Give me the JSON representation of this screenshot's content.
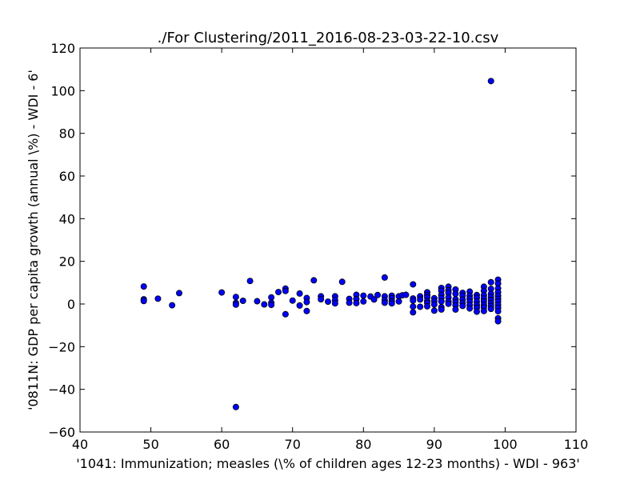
{
  "chart_data": {
    "type": "scatter",
    "title": "./For Clustering/2011_2016-08-23-03-22-10.csv",
    "xlabel": "'1041: Immunization; measles  (\\% of children ages 12-23 months) - WDI - 963'",
    "ylabel": "'0811N: GDP per capita growth  (annual \\%) - WDI - 6'",
    "xlim": [
      40,
      110
    ],
    "ylim": [
      -60,
      120
    ],
    "xticks": [
      40,
      50,
      60,
      70,
      80,
      90,
      100,
      110
    ],
    "yticks": [
      -60,
      -40,
      -20,
      0,
      20,
      40,
      60,
      80,
      100,
      120
    ],
    "grid": false,
    "marker_color": "#0000ff",
    "marker_edge": "#000000",
    "points": [
      [
        49,
        8.2
      ],
      [
        49,
        2.2
      ],
      [
        49,
        1.4
      ],
      [
        51,
        2.5
      ],
      [
        53,
        -0.6
      ],
      [
        54,
        5.1
      ],
      [
        60,
        5.4
      ],
      [
        62,
        3.3
      ],
      [
        62,
        0.5
      ],
      [
        62,
        -0.3
      ],
      [
        62,
        -48.3
      ],
      [
        63,
        1.5
      ],
      [
        64,
        10.8
      ],
      [
        65,
        1.3
      ],
      [
        66,
        -0.2
      ],
      [
        67,
        3.1
      ],
      [
        67,
        0.6
      ],
      [
        67,
        -0.4
      ],
      [
        68,
        5.6
      ],
      [
        69,
        7.2
      ],
      [
        69,
        6.1
      ],
      [
        69,
        -4.8
      ],
      [
        70,
        1.6
      ],
      [
        71,
        4.9
      ],
      [
        71,
        -0.7
      ],
      [
        72,
        2.8
      ],
      [
        72,
        0.9
      ],
      [
        72,
        -3.3
      ],
      [
        73,
        11.1
      ],
      [
        74,
        3.6
      ],
      [
        74,
        2.2
      ],
      [
        75,
        1.1
      ],
      [
        76,
        3.6
      ],
      [
        76,
        1.8
      ],
      [
        76,
        0.3
      ],
      [
        77,
        10.4
      ],
      [
        78,
        2.4
      ],
      [
        78,
        0.6
      ],
      [
        79,
        4.3
      ],
      [
        79,
        2.3
      ],
      [
        79,
        0.4
      ],
      [
        80,
        3.9
      ],
      [
        80,
        1.2
      ],
      [
        81,
        3.5
      ],
      [
        81.5,
        2.1
      ],
      [
        82,
        4.2
      ],
      [
        83,
        12.4
      ],
      [
        83,
        3.6
      ],
      [
        83,
        1.8
      ],
      [
        83,
        0.6
      ],
      [
        84,
        3.9
      ],
      [
        84,
        2.7
      ],
      [
        84,
        1.2
      ],
      [
        84,
        0.3
      ],
      [
        85,
        3.6
      ],
      [
        85,
        1.2
      ],
      [
        85.5,
        4.1
      ],
      [
        86,
        4.3
      ],
      [
        87,
        9.2
      ],
      [
        87,
        2.6
      ],
      [
        87,
        1.6
      ],
      [
        87,
        -1.2
      ],
      [
        87,
        -3.9
      ],
      [
        88,
        3.6
      ],
      [
        88,
        2.1
      ],
      [
        88,
        -1.3
      ],
      [
        89,
        5.5
      ],
      [
        89,
        4.2
      ],
      [
        89,
        3.1
      ],
      [
        89,
        1.4
      ],
      [
        89,
        0.5
      ],
      [
        89,
        -1.1
      ],
      [
        90,
        2.7
      ],
      [
        90,
        1.3
      ],
      [
        90,
        -0.2
      ],
      [
        90,
        -3.1
      ],
      [
        91,
        7.5
      ],
      [
        91,
        6.2
      ],
      [
        91,
        4.3
      ],
      [
        91,
        2.8
      ],
      [
        91,
        1.2
      ],
      [
        91,
        -1.5
      ],
      [
        91,
        -2.6
      ],
      [
        92,
        8.1
      ],
      [
        92,
        6.4
      ],
      [
        92,
        5.2
      ],
      [
        92,
        3.1
      ],
      [
        92,
        1.2
      ],
      [
        92,
        0.1
      ],
      [
        93,
        6.8
      ],
      [
        93,
        4.8
      ],
      [
        93,
        2.2
      ],
      [
        93,
        0.9
      ],
      [
        93,
        -0.6
      ],
      [
        93,
        -2.6
      ],
      [
        94,
        5.2
      ],
      [
        94,
        3.9
      ],
      [
        94,
        2.1
      ],
      [
        94,
        0.5
      ],
      [
        94,
        -0.9
      ],
      [
        95,
        5.8
      ],
      [
        95,
        3.9
      ],
      [
        95,
        2.5
      ],
      [
        95,
        1.1
      ],
      [
        95,
        -0.5
      ],
      [
        95,
        -2.1
      ],
      [
        96,
        4.2
      ],
      [
        96,
        2.9
      ],
      [
        96,
        1.1
      ],
      [
        96,
        -0.5
      ],
      [
        96,
        -1.8
      ],
      [
        96,
        -3.6
      ],
      [
        97,
        8.1
      ],
      [
        97,
        6.2
      ],
      [
        97,
        4.1
      ],
      [
        97,
        2.6
      ],
      [
        97,
        1.2
      ],
      [
        97,
        -0.4
      ],
      [
        97,
        -1.6
      ],
      [
        97,
        -3.3
      ],
      [
        98,
        104.5
      ],
      [
        98,
        10.2
      ],
      [
        98,
        7.1
      ],
      [
        98,
        4.8
      ],
      [
        98,
        3.3
      ],
      [
        98,
        1.9
      ],
      [
        98,
        0.4
      ],
      [
        98,
        -0.9
      ],
      [
        98,
        -2.3
      ],
      [
        99,
        11.4
      ],
      [
        99,
        9.6
      ],
      [
        99,
        7.3
      ],
      [
        99,
        5.5
      ],
      [
        99,
        3.8
      ],
      [
        99,
        2.4
      ],
      [
        99,
        1.1
      ],
      [
        99,
        -0.4
      ],
      [
        99,
        -1.8
      ],
      [
        99,
        -3.4
      ],
      [
        99,
        -6.7
      ],
      [
        99,
        -8.1
      ]
    ]
  }
}
